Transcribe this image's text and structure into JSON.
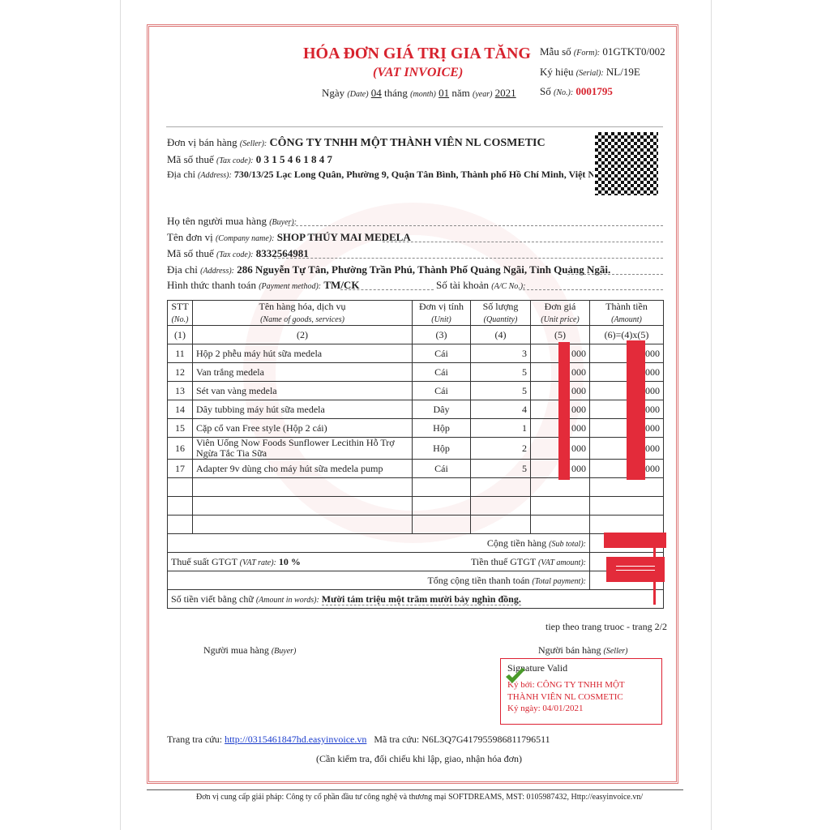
{
  "header": {
    "title": "HÓA ĐƠN GIÁ TRỊ GIA TĂNG",
    "subtitle": "(VAT INVOICE)",
    "date_label": "Ngày",
    "date_en": "(Date)",
    "day": "04",
    "month_label": "tháng",
    "month_en": "(month)",
    "month": "01",
    "year_label": "năm",
    "year_en": "(year)",
    "year": "2021",
    "form_label": "Mẫu số",
    "form_en": "(Form):",
    "form": "01GTKT0/002",
    "serial_label": "Ký hiệu",
    "serial_en": "(Serial):",
    "serial": "NL/19E",
    "no_label": "Số",
    "no_en": "(No.):",
    "no": "0001795"
  },
  "seller": {
    "name_label": "Đơn vị bán hàng",
    "name_en": "(Seller):",
    "name": "CÔNG TY TNHH MỘT THÀNH VIÊN NL COSMETIC",
    "tax_label": "Mã số thuế",
    "tax_en": "(Tax code):",
    "tax": "0 3 1 5 4 6 1 8 4 7",
    "addr_label": "Địa chỉ",
    "addr_en": "(Address):",
    "addr": "730/13/25 Lạc Long Quân, Phường 9, Quận Tân Bình, Thành phố Hồ Chí Minh, Việt Nan"
  },
  "buyer": {
    "buyer_label": "Họ tên người mua hàng",
    "buyer_en": "(Buyer):",
    "company_label": "Tên đơn vị",
    "company_en": "(Company name):",
    "company": "SHOP THÚY MAI MEDELA",
    "tax_label": "Mã số thuế",
    "tax_en": "(Tax code):",
    "tax": "8332564981",
    "addr_label": "Địa chỉ",
    "addr_en": "(Address):",
    "addr": "286 Nguyễn Tự Tân, Phường Trần Phú, Thành Phố Quảng Ngãi, Tỉnh Quảng Ngãi.",
    "pay_label": "Hình thức thanh toán",
    "pay_en": "(Payment method):",
    "pay": "TM/CK",
    "acc_label": "Số tài khoản",
    "acc_en": "(A/C No.):"
  },
  "table": {
    "headers": [
      [
        "STT",
        "(No.)"
      ],
      [
        "Tên hàng hóa, dịch vụ",
        "(Name of goods, services)"
      ],
      [
        "Đơn vị tính",
        "(Unit)"
      ],
      [
        "Số lượng",
        "(Quantity)"
      ],
      [
        "Đơn giá",
        "(Unit price)"
      ],
      [
        "Thành tiền",
        "(Amount)"
      ]
    ],
    "index": [
      "(1)",
      "(2)",
      "(3)",
      "(4)",
      "(5)",
      "(6)=(4)x(5)"
    ],
    "rows": [
      [
        "11",
        "Hộp 2 phễu máy hút sữa medela",
        "Cái",
        "3",
        "000",
        "000"
      ],
      [
        "12",
        "Van trắng medela",
        "Cái",
        "5",
        "000",
        "000"
      ],
      [
        "13",
        "Sét van vàng medela",
        "Cái",
        "5",
        "000",
        "000"
      ],
      [
        "14",
        "Dây tubbing máy hút sữa medela",
        "Dây",
        "4",
        "000",
        "000"
      ],
      [
        "15",
        "Cặp cổ van Free style (Hộp 2 cái)",
        "Hộp",
        "1",
        "000",
        "000"
      ],
      [
        "16",
        "Viên Uống Now Foods Sunflower Lecithin Hỗ Trợ Ngừa Tắc Tia Sữa",
        "Hộp",
        "2",
        "000",
        "000"
      ],
      [
        "17",
        "Adapter 9v dùng cho máy hút sữa medela pump",
        "Cái",
        "5",
        "000",
        "000"
      ]
    ],
    "subtotal_label": "Cộng tiền hàng",
    "subtotal_en": "(Sub total):",
    "vat_rate_label": "Thuế suất GTGT",
    "vat_rate_en": "(VAT rate):",
    "vat_rate": "10 %",
    "vat_amount_label": "Tiền thuế GTGT",
    "vat_amount_en": "(VAT amount):",
    "total_label": "Tổng cộng tiền thanh toán",
    "total_en": "(Total payment):",
    "words_label": "Số tiền viết bằng chữ",
    "words_en": "(Amount in words):",
    "words": "Mười tám triệu một trăm mười bảy nghìn đồng."
  },
  "footer": {
    "page": "tiep theo trang truoc - trang 2/2",
    "buyer_sign": "Người mua hàng",
    "buyer_sign_en": "(Buyer)",
    "seller_sign": "Người bán hàng",
    "seller_sign_en": "(Seller)",
    "sig_valid": "Signature Valid",
    "signed_by": "Ký bởi: CÔNG TY TNHH MỘT THÀNH VIÊN NL COSMETIC",
    "signed_date": "Ký ngày: 04/01/2021",
    "lookup_label": "Trang tra cứu:",
    "lookup_url": "http://0315461847hd.easyinvoice.vn",
    "code_label": "Mã tra cứu:",
    "code": "N6L3Q7G417955986811796511",
    "note": "(Cần kiểm tra, đối chiếu khi lập, giao, nhận hóa đơn)",
    "provider": "Đơn vị cung cấp giải pháp: Công ty cổ phần đầu tư công nghệ và thương mại SOFTDREAMS, MST: 0105987432, Http://easyinvoice.vn/"
  },
  "colors": {
    "accent": "#d7232e",
    "redaction": "#e32b3a",
    "link": "#1a3ccc"
  }
}
